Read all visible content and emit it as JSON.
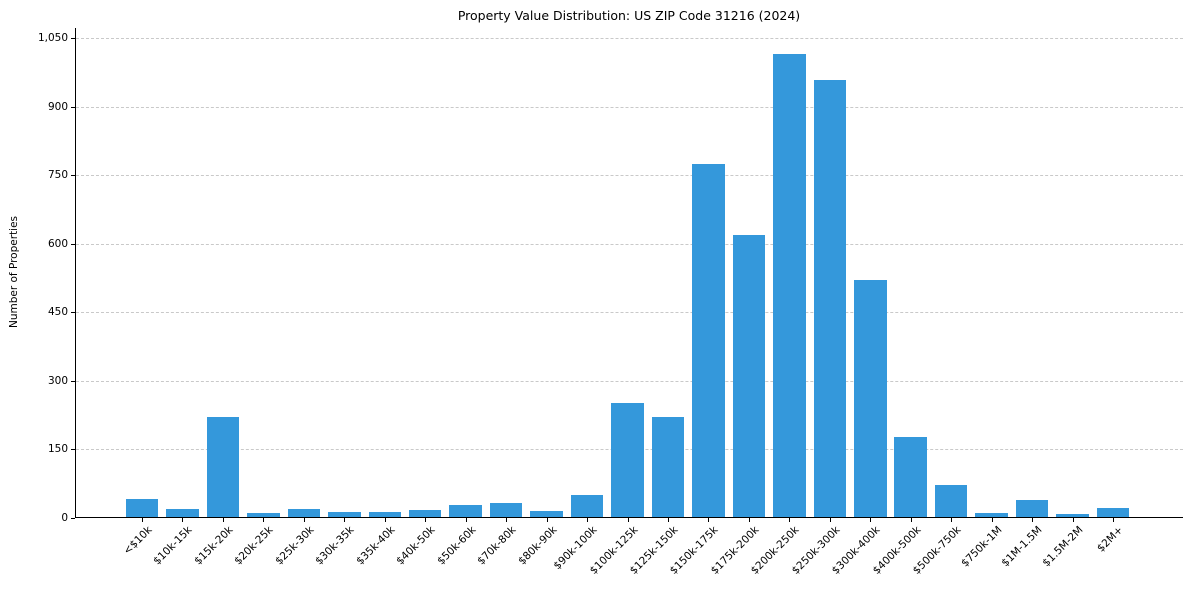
{
  "chart_data": {
    "type": "bar",
    "title": "Property Value Distribution: US ZIP Code 31216 (2024)",
    "xlabel": "",
    "ylabel": "Number of Properties",
    "categories": [
      "<$10k",
      "$10k-15k",
      "$15k-20k",
      "$20k-25k",
      "$25k-30k",
      "$30k-35k",
      "$35k-40k",
      "$40k-50k",
      "$50k-60k",
      "$70k-80k",
      "$80k-90k",
      "$90k-100k",
      "$100k-125k",
      "$125k-150k",
      "$150k-175k",
      "$175k-200k",
      "$200k-250k",
      "$250k-300k",
      "$300k-400k",
      "$400k-500k",
      "$500k-750k",
      "$750k-1M",
      "$1M-1.5M",
      "$1.5M-2M",
      "$2M+"
    ],
    "values": [
      40,
      18,
      220,
      9,
      18,
      11,
      11,
      16,
      28,
      31,
      15,
      49,
      250,
      220,
      775,
      620,
      1015,
      960,
      520,
      176,
      72,
      10,
      38,
      7,
      21
    ],
    "ylim": [
      0,
      1073
    ],
    "yticks": [
      0,
      150,
      300,
      450,
      600,
      750,
      900,
      1050
    ],
    "ytick_labels": [
      "0",
      "150",
      "300",
      "450",
      "600",
      "750",
      "900",
      "1,050"
    ],
    "x_tick_rotation": 45,
    "grid": "horizontal-dashed",
    "legend": "none",
    "bar_color": "#3498db",
    "grid_color": "#c9c9c9",
    "axis_color": "#000000"
  }
}
